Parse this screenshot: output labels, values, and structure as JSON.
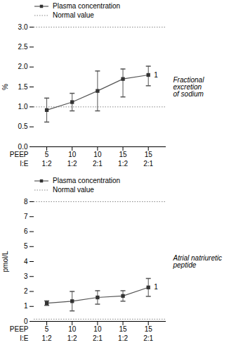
{
  "chart_data": [
    {
      "type": "line",
      "ylabel": "%",
      "side_label": "Fractional\nexcretion\nof sodium",
      "ylim": [
        0.0,
        3.0
      ],
      "yticks": [
        {
          "value": 0.0,
          "label": "0.0"
        },
        0.5,
        {
          "value": 1.0,
          "label": "1.0"
        },
        1.5,
        {
          "value": 2.0,
          "label": "2.0"
        },
        2.5,
        {
          "value": 3.0,
          "label": "3.0"
        }
      ],
      "x_rows": [
        {
          "name": "PEEP",
          "categories": [
            "5",
            "10",
            "10",
            "15",
            "15"
          ]
        },
        {
          "name": "I:E",
          "categories": [
            "1:2",
            "1:2",
            "2:1",
            "1:2",
            "2:1"
          ]
        }
      ],
      "series": [
        {
          "name": "Plasma concentration",
          "color": "#555555",
          "marker": "square",
          "marker_color": "#333333",
          "values": [
            0.92,
            1.12,
            1.4,
            1.7,
            1.8
          ],
          "error_low": [
            0.3,
            0.22,
            0.5,
            0.45,
            0.27
          ],
          "error_high": [
            0.3,
            0.22,
            0.5,
            0.25,
            0.22
          ]
        }
      ],
      "reference_lines": {
        "name": "Normal value",
        "color": "#888888",
        "line_style": "dotted",
        "values": [
          1.0,
          3.0
        ]
      },
      "annotations": [
        {
          "text": "1",
          "index": 4
        }
      ],
      "legend": "upper left"
    },
    {
      "type": "line",
      "ylabel": "pmol/L",
      "side_label": "Atrial natriuretic peptide",
      "ylim": [
        0,
        8
      ],
      "yticks": [
        0,
        1,
        2,
        3,
        4,
        5,
        6,
        7,
        8
      ],
      "x_rows": [
        {
          "name": "PEEP",
          "categories": [
            "5",
            "10",
            "10",
            "15",
            "15"
          ]
        },
        {
          "name": "I:E",
          "categories": [
            "1:2",
            "1:2",
            "2:1",
            "1:2",
            "2:1"
          ]
        }
      ],
      "series": [
        {
          "name": "Plasma concentration",
          "color": "#555555",
          "marker": "square",
          "marker_color": "#333333",
          "values": [
            1.22,
            1.35,
            1.6,
            1.7,
            2.27
          ],
          "error_low": [
            0.15,
            0.65,
            0.45,
            0.35,
            0.6
          ],
          "error_high": [
            0.15,
            0.65,
            0.45,
            0.35,
            0.6
          ]
        }
      ],
      "reference_lines": {
        "name": "Normal value",
        "color": "#888888",
        "line_style": "dotted",
        "values": [
          0.15,
          8.0
        ]
      },
      "annotations": [
        {
          "text": "1",
          "index": 4
        }
      ],
      "legend": "upper left"
    }
  ]
}
